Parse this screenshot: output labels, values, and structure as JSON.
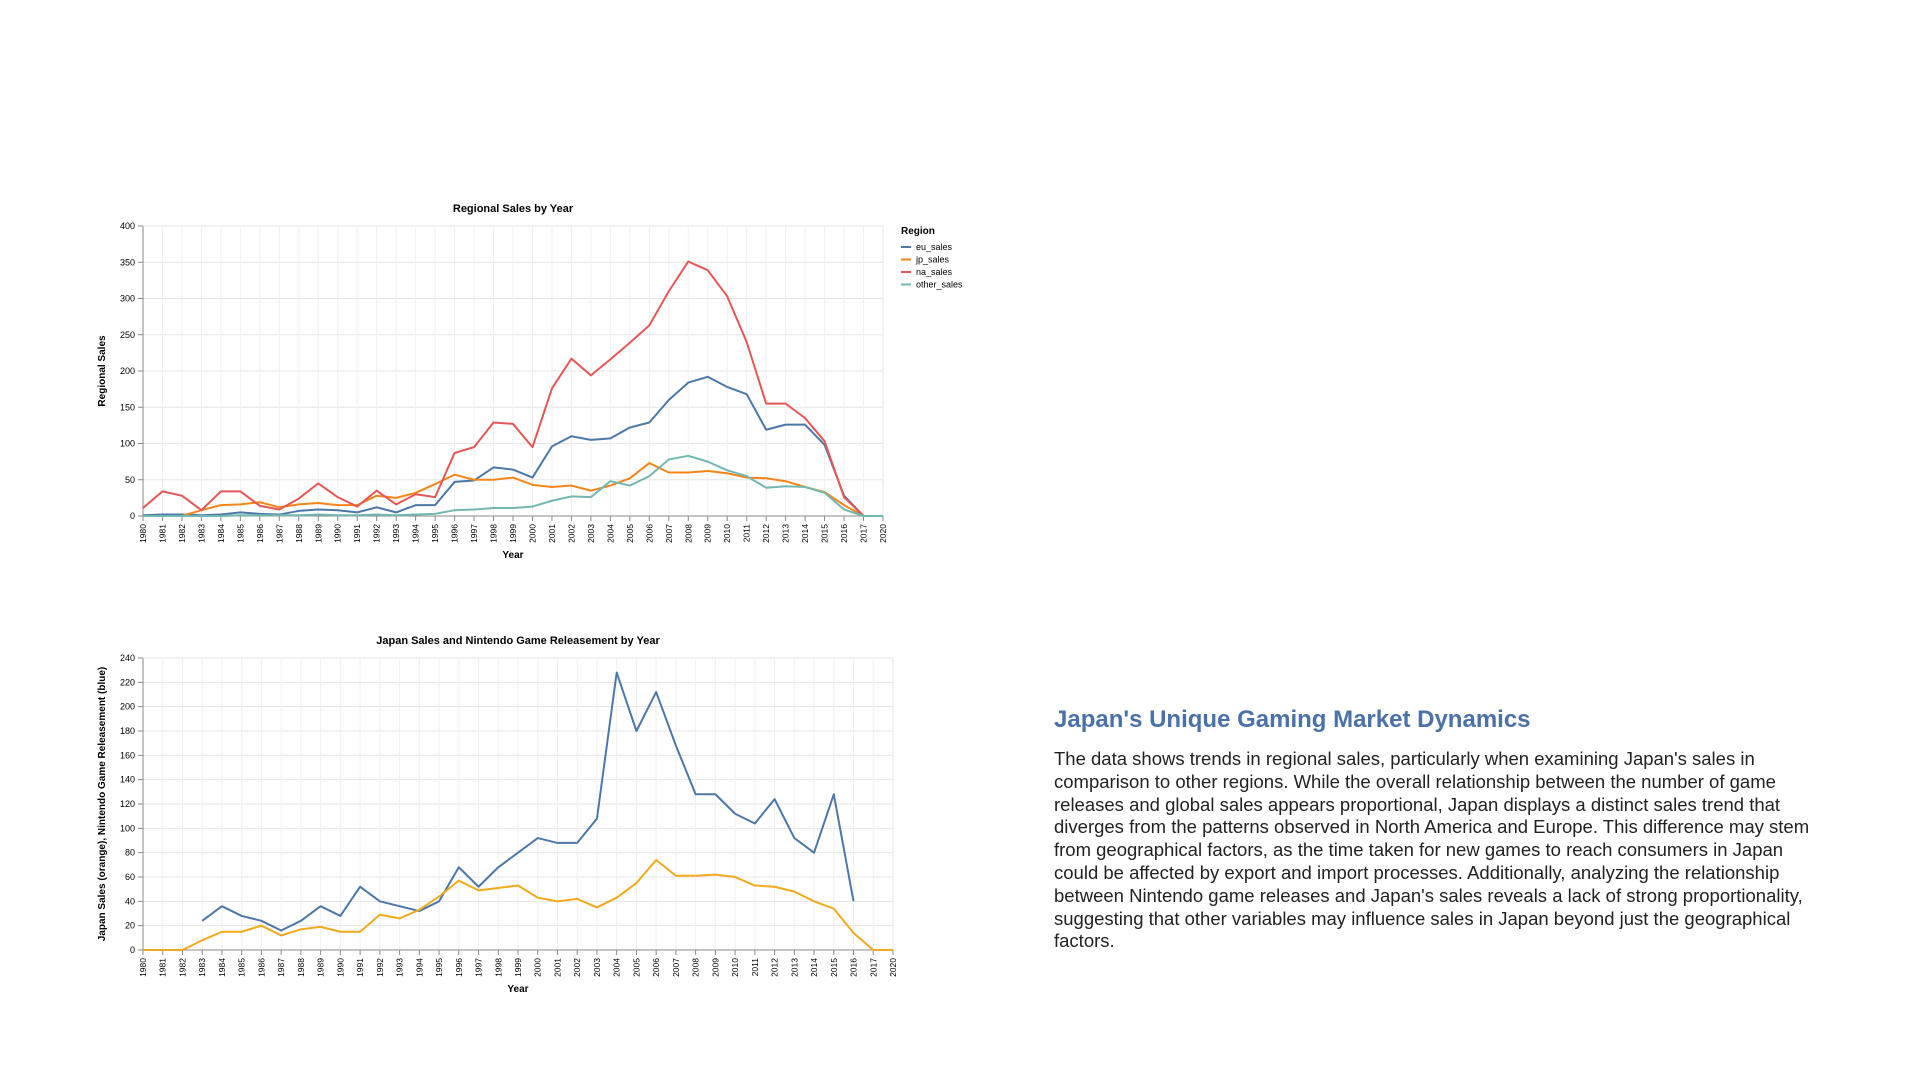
{
  "charts": [
    {
      "type": "line",
      "title": "Regional Sales by Year",
      "xlabel": "Year",
      "ylabel": "Regional Sales",
      "ylim": [
        0,
        400
      ],
      "yticks": [
        0,
        50,
        100,
        150,
        200,
        250,
        300,
        350,
        400
      ],
      "grid": true,
      "legend_title": "Region",
      "legend_position": "top-right",
      "x": [
        1980,
        1981,
        1982,
        1983,
        1984,
        1985,
        1986,
        1987,
        1988,
        1989,
        1990,
        1991,
        1992,
        1993,
        1994,
        1995,
        1996,
        1997,
        1998,
        1999,
        2000,
        2001,
        2002,
        2003,
        2004,
        2005,
        2006,
        2007,
        2008,
        2009,
        2010,
        2011,
        2012,
        2013,
        2014,
        2015,
        2016,
        2017,
        2020
      ],
      "series": [
        {
          "name": "eu_sales",
          "color": "#4c78a8",
          "values": [
            1,
            2,
            2,
            1,
            2,
            5,
            3,
            2,
            7,
            9,
            8,
            5,
            12,
            5,
            15,
            15,
            47,
            49,
            67,
            64,
            53,
            96,
            110,
            105,
            107,
            122,
            129,
            160,
            184,
            192,
            178,
            168,
            119,
            126,
            126,
            98,
            28,
            0,
            0
          ]
        },
        {
          "name": "jp_sales",
          "color": "#f58518",
          "values": [
            0,
            0,
            0,
            8,
            15,
            16,
            19,
            12,
            16,
            18,
            15,
            15,
            28,
            25,
            32,
            44,
            57,
            50,
            50,
            53,
            43,
            40,
            42,
            35,
            42,
            52,
            73,
            60,
            60,
            62,
            59,
            53,
            52,
            48,
            40,
            33,
            15,
            0,
            0
          ]
        },
        {
          "name": "na_sales",
          "color": "#e45756",
          "values": [
            11,
            34,
            28,
            8,
            34,
            34,
            14,
            9,
            24,
            45,
            26,
            13,
            35,
            16,
            30,
            26,
            87,
            95,
            129,
            127,
            95,
            176,
            217,
            194,
            216,
            239,
            263,
            310,
            351,
            339,
            303,
            240,
            155,
            155,
            135,
            103,
            26,
            0,
            0
          ]
        },
        {
          "name": "other_sales",
          "color": "#72b7b2",
          "values": [
            0,
            0,
            0,
            0,
            0,
            1,
            1,
            1,
            1,
            2,
            1,
            1,
            2,
            1,
            2,
            3,
            8,
            9,
            11,
            11,
            13,
            21,
            27,
            26,
            48,
            42,
            55,
            78,
            83,
            75,
            63,
            55,
            39,
            41,
            40,
            32,
            9,
            0,
            0
          ]
        }
      ]
    },
    {
      "type": "line",
      "title": "Japan Sales and Nintendo Game Releasement by Year",
      "xlabel": "Year",
      "ylabel": "Japan Sales (orange), Nintendo Game Releasement (blue)",
      "ylim": [
        0,
        240
      ],
      "yticks": [
        0,
        20,
        40,
        60,
        80,
        100,
        120,
        140,
        160,
        180,
        200,
        220,
        240
      ],
      "grid": true,
      "x": [
        1980,
        1981,
        1982,
        1983,
        1984,
        1985,
        1986,
        1987,
        1988,
        1989,
        1990,
        1991,
        1992,
        1993,
        1994,
        1995,
        1996,
        1997,
        1998,
        1999,
        2000,
        2001,
        2002,
        2003,
        2004,
        2005,
        2006,
        2007,
        2008,
        2009,
        2010,
        2011,
        2012,
        2013,
        2014,
        2015,
        2016,
        2017,
        2020
      ],
      "series": [
        {
          "color": "#4c78a8",
          "values": [
            null,
            null,
            null,
            24,
            36,
            28,
            24,
            16,
            24,
            36,
            28,
            52,
            40,
            36,
            32,
            40,
            68,
            52,
            68,
            80,
            92,
            88,
            88,
            108,
            228,
            180,
            212,
            168,
            128,
            128,
            112,
            104,
            124,
            92,
            80,
            128,
            40,
            null,
            null
          ]
        },
        {
          "color": "#f2a91c",
          "values": [
            0,
            0,
            0,
            8,
            15,
            15,
            20,
            12,
            17,
            19,
            15,
            15,
            29,
            26,
            33,
            44,
            57,
            49,
            51,
            53,
            43,
            40,
            42,
            35,
            43,
            55,
            74,
            61,
            61,
            62,
            60,
            53,
            52,
            48,
            40,
            34,
            14,
            0,
            0
          ]
        }
      ]
    }
  ],
  "chart_data": [
    {
      "type": "line",
      "title": "Regional Sales by Year",
      "xlabel": "Year",
      "ylabel": "Regional Sales",
      "ylim": [
        0,
        400
      ],
      "legend_title": "Region",
      "series_names": [
        "eu_sales",
        "jp_sales",
        "na_sales",
        "other_sales"
      ]
    },
    {
      "type": "line",
      "title": "Japan Sales and Nintendo Game Releasement by Year",
      "xlabel": "Year",
      "ylabel": "Japan Sales (orange), Nintendo Game Releasement (blue)",
      "ylim": [
        0,
        240
      ]
    }
  ],
  "insight": {
    "heading": "Japan's Unique Gaming Market Dynamics",
    "body": "The data shows trends in regional sales, particularly when examining Japan's sales in comparison to other regions. While the overall relationship between the number of game releases and global sales appears proportional, Japan displays a distinct sales trend that diverges from the patterns observed in North America and Europe. This difference may stem from geographical factors, as the time taken for new games to reach consumers in Japan could be affected by export and import processes. Additionally, analyzing the relationship between Nintendo game releases and Japan's sales reveals a lack of strong proportionality, suggesting that other variables may influence sales in Japan beyond just the geographical factors."
  }
}
